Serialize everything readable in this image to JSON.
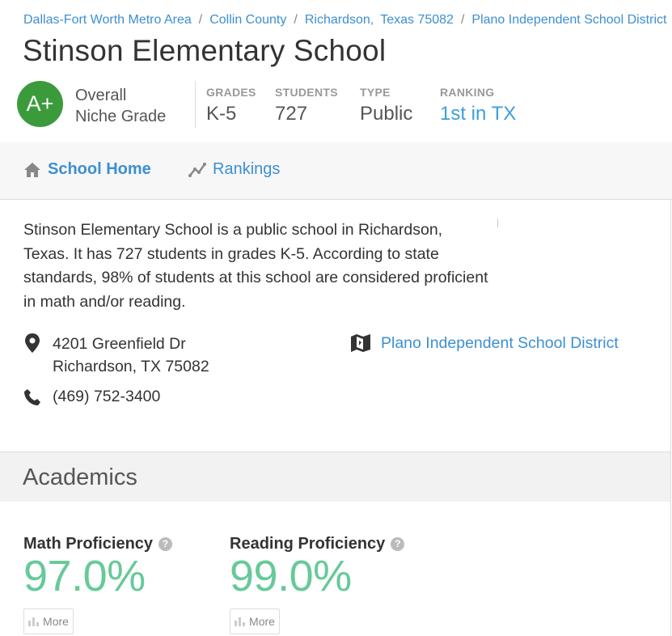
{
  "breadcrumb": {
    "metro": "Dallas-Fort Worth Metro Area",
    "county": "Collin County",
    "city": "Richardson",
    "state_zip": "Texas 75082",
    "district": "Plano Independent School District"
  },
  "school": {
    "name": "Stinson Elementary School",
    "overall_grade": "A+",
    "overall_label_line1": "Overall",
    "overall_label_line2": "Niche Grade",
    "grade_color": "#3b9b3b"
  },
  "facts": [
    {
      "label": "GRADES",
      "value": "K-5"
    },
    {
      "label": "STUDENTS",
      "value": "727"
    },
    {
      "label": "TYPE",
      "value": "Public"
    },
    {
      "label": "RANKING",
      "value": "1st in TX"
    }
  ],
  "nav": {
    "items": [
      {
        "label": "School Home",
        "icon": "home-icon",
        "active": true
      },
      {
        "label": "Rankings",
        "icon": "rankings-icon",
        "active": false
      }
    ]
  },
  "overview": {
    "description": "Stinson Elementary School is a public school in Richardson, Texas. It has 727 students in grades K-5. According to state standards, 98% of students at this school are considered proficient in math and/or reading.",
    "address_line1": "4201 Greenfield Dr",
    "address_line2": "Richardson, TX 75082",
    "phone": "(469) 752-3400",
    "district_link": "Plano Independent School District"
  },
  "academics": {
    "title": "Academics",
    "metrics": [
      {
        "label": "Math Proficiency",
        "value": "97.0%",
        "button": "More"
      },
      {
        "label": "Reading Proficiency",
        "value": "99.0%",
        "button": "More"
      }
    ]
  },
  "colors": {
    "link": "#3d8fd1",
    "metric": "#67c99a"
  }
}
